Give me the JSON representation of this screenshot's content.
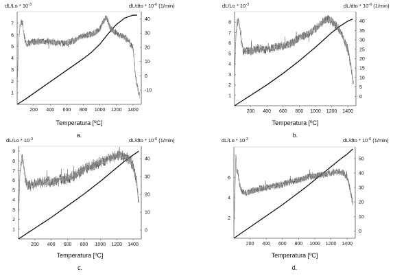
{
  "chart_data": [
    {
      "type": "line",
      "panel": "a.",
      "ylabel_left": "dL/Lo * 10",
      "ylabel_left_exp": "-3",
      "ylabel_right": "dL/dto * 10",
      "ylabel_right_exp": "-6",
      "ylabel_right_unit": " (1/min)",
      "xlabel": "Temperatura [ºC]",
      "xlim": [
        0,
        1500
      ],
      "xticks": [
        200,
        400,
        600,
        800,
        1000,
        1200,
        1400
      ],
      "ylim_left": [
        0,
        8
      ],
      "yticks_left": [
        1,
        2,
        3,
        4,
        5,
        6,
        7
      ],
      "ylim_right": [
        -20,
        45
      ],
      "yticks_right": [
        -10,
        0,
        10,
        20,
        30,
        40
      ],
      "series": [
        {
          "axis": "left",
          "style": "smooth",
          "x": [
            0,
            100,
            200,
            300,
            400,
            500,
            600,
            700,
            800,
            900,
            1000,
            1100,
            1200,
            1300,
            1400,
            1450
          ],
          "y": [
            0,
            0.45,
            0.95,
            1.45,
            1.95,
            2.45,
            2.95,
            3.45,
            3.95,
            4.5,
            5.2,
            6.1,
            6.9,
            7.45,
            7.7,
            7.7
          ]
        },
        {
          "axis": "right",
          "style": "noisy",
          "x": [
            0,
            15,
            30,
            45,
            60,
            80,
            110,
            150,
            200,
            300,
            400,
            500,
            600,
            700,
            800,
            900,
            1000,
            1050,
            1080,
            1100,
            1130,
            1180,
            1250,
            1300,
            1350,
            1400,
            1430,
            1460,
            1480
          ],
          "y": [
            -8,
            20,
            33,
            38,
            38,
            30,
            22,
            23,
            24,
            24,
            24,
            23,
            23,
            25,
            28,
            29,
            33,
            39,
            41,
            38,
            33,
            31,
            28,
            27,
            24,
            20,
            0,
            -10,
            -14
          ]
        }
      ]
    },
    {
      "type": "line",
      "panel": "b.",
      "ylabel_left": "dL/Lo * 10",
      "ylabel_left_exp": "-3",
      "ylabel_right": "dL/dto * 10",
      "ylabel_right_exp": "-6",
      "ylabel_right_unit": " (1/min)",
      "xlabel": "Temperatura [ºC]",
      "xlim": [
        0,
        1500
      ],
      "xticks": [
        200,
        400,
        600,
        800,
        1000,
        1200,
        1400
      ],
      "ylim_left": [
        0,
        9
      ],
      "yticks_left": [
        1,
        2,
        3,
        4,
        5,
        6,
        7,
        8
      ],
      "ylim_right": [
        -5,
        45
      ],
      "yticks_right": [
        0,
        5,
        10,
        15,
        20,
        25,
        30,
        35,
        40
      ],
      "series": [
        {
          "axis": "left",
          "style": "smooth",
          "x": [
            0,
            100,
            200,
            300,
            400,
            500,
            600,
            700,
            800,
            900,
            1000,
            1100,
            1200,
            1300,
            1400,
            1460
          ],
          "y": [
            0,
            0.5,
            1.0,
            1.5,
            2.0,
            2.55,
            3.1,
            3.7,
            4.3,
            4.95,
            5.6,
            6.3,
            7.0,
            7.6,
            8.1,
            8.3
          ]
        },
        {
          "axis": "right",
          "style": "noisy",
          "x": [
            0,
            15,
            30,
            45,
            60,
            80,
            110,
            150,
            200,
            300,
            400,
            500,
            600,
            700,
            800,
            900,
            1000,
            1100,
            1150,
            1200,
            1250,
            1300,
            1350,
            1400,
            1440,
            1470
          ],
          "y": [
            10,
            30,
            39,
            40,
            38,
            30,
            24,
            24,
            24,
            25,
            25,
            26,
            27,
            28,
            31,
            33,
            36,
            40,
            41,
            40,
            38,
            35,
            30,
            25,
            15,
            5
          ]
        }
      ]
    },
    {
      "type": "line",
      "panel": "c.",
      "ylabel_left": "dL/Lo * 10",
      "ylabel_left_exp": "-3",
      "ylabel_right": "dL/dto * 10",
      "ylabel_right_exp": "-6",
      "ylabel_right_unit": " (1/min)",
      "xlabel": "Temperatura [ºC]",
      "xlim": [
        0,
        1500
      ],
      "xticks": [
        200,
        400,
        600,
        800,
        1000,
        1200,
        1400
      ],
      "ylim_left": [
        0,
        9.5
      ],
      "yticks_left": [
        1,
        2,
        3,
        4,
        5,
        6,
        7,
        8,
        9
      ],
      "ylim_right": [
        -5,
        47
      ],
      "yticks_right": [
        0,
        10,
        20,
        30,
        40
      ],
      "series": [
        {
          "axis": "left",
          "style": "smooth",
          "x": [
            0,
            100,
            200,
            300,
            400,
            500,
            600,
            700,
            800,
            900,
            1000,
            1100,
            1200,
            1300,
            1400,
            1470
          ],
          "y": [
            0,
            0.55,
            1.1,
            1.65,
            2.2,
            2.8,
            3.4,
            4.0,
            4.6,
            5.25,
            5.9,
            6.6,
            7.3,
            8.0,
            8.6,
            9.0
          ]
        },
        {
          "axis": "right",
          "style": "noisy",
          "x": [
            0,
            15,
            30,
            45,
            60,
            80,
            110,
            150,
            200,
            300,
            400,
            500,
            600,
            700,
            800,
            900,
            1000,
            1100,
            1200,
            1250,
            1300,
            1350,
            1400,
            1440,
            1470
          ],
          "y": [
            5,
            30,
            38,
            40,
            38,
            30,
            25,
            25,
            26,
            27,
            27,
            28,
            29,
            31,
            34,
            36,
            38,
            40,
            42,
            42,
            41,
            40,
            36,
            28,
            15
          ]
        }
      ]
    },
    {
      "type": "line",
      "panel": "d.",
      "ylabel_left": "dL/Lo * 10",
      "ylabel_left_exp": "-3",
      "ylabel_right": "dL/dto * 10",
      "ylabel_right_exp": "-6",
      "ylabel_right_unit": " (1/min)",
      "xlabel": "Temperatura [ºC]",
      "xlim": [
        0,
        1500
      ],
      "xticks": [
        200,
        400,
        600,
        800,
        1000,
        1200,
        1400
      ],
      "ylim_left": [
        0,
        9
      ],
      "yticks_left": [
        2,
        4,
        6
      ],
      "ylim_right": [
        -5,
        58
      ],
      "yticks_right": [
        0,
        10,
        20,
        30,
        40,
        50
      ],
      "series": [
        {
          "axis": "left",
          "style": "smooth",
          "x": [
            0,
            100,
            200,
            300,
            400,
            500,
            600,
            700,
            800,
            900,
            1000,
            1100,
            1200,
            1300,
            1400,
            1470
          ],
          "y": [
            0,
            0.55,
            1.1,
            1.65,
            2.2,
            2.75,
            3.3,
            3.9,
            4.5,
            5.1,
            5.75,
            6.4,
            7.05,
            7.7,
            8.3,
            8.8
          ]
        },
        {
          "axis": "right",
          "style": "noisy",
          "x": [
            0,
            15,
            25,
            35,
            50,
            70,
            100,
            150,
            200,
            300,
            400,
            500,
            600,
            700,
            800,
            900,
            1000,
            1100,
            1200,
            1300,
            1350,
            1400,
            1440,
            1470
          ],
          "y": [
            0,
            30,
            55,
            42,
            40,
            32,
            27,
            26,
            27,
            29,
            30,
            31,
            32,
            34,
            35,
            37,
            38,
            39,
            40,
            41,
            40,
            37,
            28,
            18
          ]
        }
      ]
    }
  ]
}
